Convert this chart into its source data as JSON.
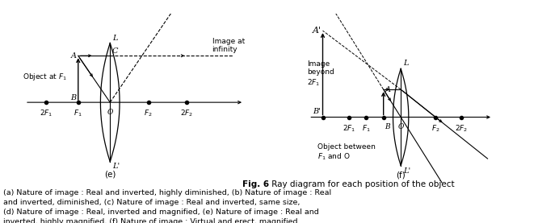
{
  "fig_label": "Fig. 6",
  "fig_title": " Ray diagram for each position of the object",
  "caption_lines": [
    "(a) Nature of image : Real and inverted, highly diminished, (b) Nature of image : Real",
    "and inverted, diminished, (c) Nature of image : Real and inverted, same size,",
    "(d) Nature of image : Real, inverted and magnified, (e) Nature of image : Real and",
    "inverted, highly magnified, (f) Nature of image : Virtual and erect, magnified"
  ],
  "bg_color": "#ffffff",
  "line_color": "#000000"
}
